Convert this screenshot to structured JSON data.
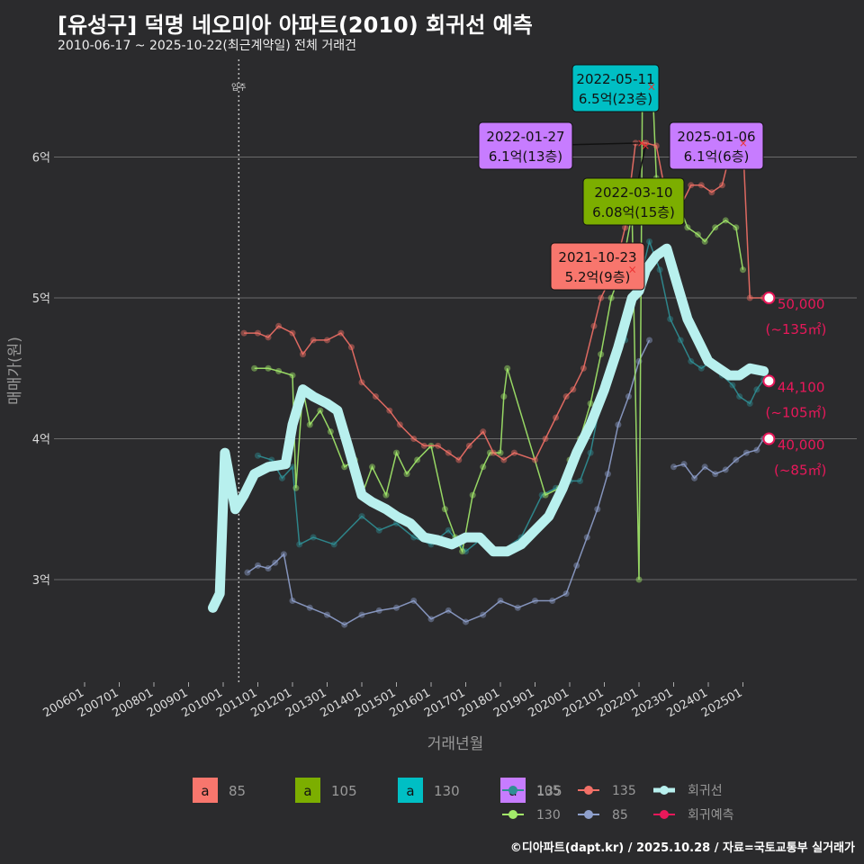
{
  "title": "[유성구] 덕명 네오미아 아파트(2010) 회귀선 예측",
  "subtitle": "2010-06-17 ~ 2025-10-22(최근계약일) 전체 거래건",
  "footer": "©디아파트(dapt.kr) / 2025.10.28 / 자료=국토교통부 실거래가",
  "colors": {
    "s85": "#8fa0cc",
    "s105": "#2f8f95",
    "s130": "#a3ea6a",
    "s135": "#f27067",
    "reg": "#b8f0ee",
    "pred": "#e8185a"
  },
  "chart_data": {
    "type": "line",
    "xlabel": "거래년월",
    "ylabel": "매매가(원)",
    "ylim": [
      2.35,
      6.95
    ],
    "x_ticks": [
      "200601",
      "200701",
      "200801",
      "200901",
      "201001",
      "201101",
      "201201",
      "201301",
      "201401",
      "201501",
      "201601",
      "201701",
      "201801",
      "201901",
      "202001",
      "202101",
      "202201",
      "202301",
      "202401",
      "202501"
    ],
    "y_ticks": [
      {
        "v": 3,
        "label": "3억"
      },
      {
        "v": 4,
        "label": "4억"
      },
      {
        "v": 5,
        "label": "5억"
      },
      {
        "v": 6,
        "label": "6억"
      }
    ],
    "move_in": {
      "x": 2010.45,
      "label": "입주"
    },
    "series": [
      {
        "name": "85",
        "key": "s85",
        "points": [
          [
            2010.7,
            3.05
          ],
          [
            2011.0,
            3.1
          ],
          [
            2011.3,
            3.08
          ],
          [
            2011.5,
            3.12
          ],
          [
            2011.75,
            3.18
          ],
          [
            2012.0,
            2.85
          ],
          [
            2012.5,
            2.8
          ],
          [
            2013.0,
            2.75
          ],
          [
            2013.5,
            2.68
          ],
          [
            2014.0,
            2.75
          ],
          [
            2014.5,
            2.78
          ],
          [
            2015.0,
            2.8
          ],
          [
            2015.5,
            2.85
          ],
          [
            2016.0,
            2.72
          ],
          [
            2016.5,
            2.78
          ],
          [
            2017.0,
            2.7
          ],
          [
            2017.5,
            2.75
          ],
          [
            2018.0,
            2.85
          ],
          [
            2018.5,
            2.8
          ],
          [
            2019.0,
            2.85
          ],
          [
            2019.5,
            2.85
          ],
          [
            2019.9,
            2.9
          ],
          [
            2020.2,
            3.1
          ],
          [
            2020.5,
            3.3
          ],
          [
            2020.8,
            3.5
          ],
          [
            2021.1,
            3.75
          ],
          [
            2021.4,
            4.1
          ],
          [
            2021.7,
            4.3
          ],
          [
            2022.0,
            4.55
          ],
          [
            2022.3,
            4.7
          ]
        ]
      },
      {
        "name": "85b",
        "key": "s85",
        "points": [
          [
            2023.0,
            3.8
          ],
          [
            2023.3,
            3.82
          ],
          [
            2023.6,
            3.72
          ],
          [
            2023.9,
            3.8
          ],
          [
            2024.2,
            3.75
          ],
          [
            2024.5,
            3.78
          ],
          [
            2024.8,
            3.85
          ],
          [
            2025.1,
            3.9
          ],
          [
            2025.4,
            3.92
          ],
          [
            2025.6,
            4.0
          ]
        ]
      },
      {
        "name": "105",
        "key": "s105",
        "points": [
          [
            2011.0,
            3.88
          ],
          [
            2011.4,
            3.85
          ],
          [
            2011.7,
            3.72
          ],
          [
            2012.0,
            3.8
          ],
          [
            2012.2,
            3.25
          ],
          [
            2012.6,
            3.3
          ],
          [
            2013.2,
            3.25
          ],
          [
            2014.0,
            3.45
          ],
          [
            2014.5,
            3.35
          ],
          [
            2015.0,
            3.4
          ],
          [
            2015.5,
            3.3
          ],
          [
            2016.0,
            3.25
          ],
          [
            2016.5,
            3.35
          ],
          [
            2017.0,
            3.2
          ],
          [
            2017.5,
            3.3
          ],
          [
            2018.0,
            3.2
          ],
          [
            2018.6,
            3.3
          ],
          [
            2019.2,
            3.6
          ],
          [
            2019.6,
            3.65
          ],
          [
            2020.0,
            3.7
          ],
          [
            2020.3,
            3.7
          ],
          [
            2020.6,
            3.9
          ],
          [
            2021.0,
            4.4
          ],
          [
            2021.3,
            4.6
          ],
          [
            2021.6,
            4.7
          ],
          [
            2021.9,
            5.0
          ],
          [
            2022.3,
            5.4
          ],
          [
            2022.6,
            5.2
          ],
          [
            2022.9,
            4.85
          ],
          [
            2023.2,
            4.7
          ],
          [
            2023.5,
            4.55
          ],
          [
            2023.8,
            4.5
          ],
          [
            2024.1,
            4.55
          ],
          [
            2024.4,
            4.45
          ],
          [
            2024.7,
            4.38
          ],
          [
            2024.9,
            4.3
          ],
          [
            2025.2,
            4.25
          ],
          [
            2025.4,
            4.35
          ],
          [
            2025.6,
            4.42
          ]
        ]
      },
      {
        "name": "130",
        "key": "s130",
        "points": [
          [
            2010.9,
            4.5
          ],
          [
            2011.3,
            4.5
          ],
          [
            2011.6,
            4.48
          ],
          [
            2012.0,
            4.45
          ],
          [
            2012.1,
            3.65
          ],
          [
            2012.3,
            4.35
          ],
          [
            2012.5,
            4.1
          ],
          [
            2012.8,
            4.2
          ],
          [
            2013.1,
            4.05
          ],
          [
            2013.5,
            3.8
          ],
          [
            2013.8,
            3.85
          ],
          [
            2014.0,
            3.6
          ],
          [
            2014.3,
            3.8
          ],
          [
            2014.7,
            3.6
          ],
          [
            2015.0,
            3.9
          ],
          [
            2015.3,
            3.75
          ],
          [
            2015.6,
            3.85
          ],
          [
            2016.0,
            3.95
          ],
          [
            2016.4,
            3.5
          ],
          [
            2016.7,
            3.3
          ],
          [
            2016.9,
            3.2
          ],
          [
            2017.2,
            3.6
          ],
          [
            2017.5,
            3.8
          ],
          [
            2017.7,
            3.9
          ],
          [
            2018.0,
            3.9
          ],
          [
            2018.1,
            4.3
          ],
          [
            2018.2,
            4.5
          ],
          [
            2019.3,
            3.6
          ],
          [
            2019.7,
            3.65
          ],
          [
            2020.0,
            3.85
          ],
          [
            2020.3,
            4.0
          ],
          [
            2020.6,
            4.25
          ],
          [
            2020.9,
            4.6
          ],
          [
            2021.2,
            5.0
          ],
          [
            2021.5,
            5.2
          ],
          [
            2021.8,
            5.6
          ],
          [
            2022.0,
            3.0
          ],
          [
            2022.1,
            6.5
          ],
          [
            2022.4,
            6.45
          ],
          [
            2022.5,
            5.85
          ],
          [
            2022.8,
            5.75
          ],
          [
            2023.1,
            5.7
          ],
          [
            2023.4,
            5.5
          ],
          [
            2023.7,
            5.45
          ],
          [
            2023.9,
            5.4
          ],
          [
            2024.2,
            5.5
          ],
          [
            2024.5,
            5.55
          ],
          [
            2024.8,
            5.5
          ],
          [
            2025.0,
            5.2
          ]
        ]
      },
      {
        "name": "135",
        "key": "s135",
        "points": [
          [
            2010.6,
            4.75
          ],
          [
            2011.0,
            4.75
          ],
          [
            2011.3,
            4.72
          ],
          [
            2011.6,
            4.8
          ],
          [
            2012.0,
            4.75
          ],
          [
            2012.3,
            4.6
          ],
          [
            2012.6,
            4.7
          ],
          [
            2013.0,
            4.7
          ],
          [
            2013.4,
            4.75
          ],
          [
            2013.7,
            4.65
          ],
          [
            2014.0,
            4.4
          ],
          [
            2014.4,
            4.3
          ],
          [
            2014.8,
            4.2
          ],
          [
            2015.1,
            4.1
          ],
          [
            2015.5,
            4.0
          ],
          [
            2015.8,
            3.95
          ],
          [
            2016.2,
            3.95
          ],
          [
            2016.5,
            3.9
          ],
          [
            2016.8,
            3.85
          ],
          [
            2017.1,
            3.95
          ],
          [
            2017.5,
            4.05
          ],
          [
            2017.8,
            3.9
          ],
          [
            2018.1,
            3.85
          ],
          [
            2018.4,
            3.9
          ],
          [
            2019.0,
            3.85
          ],
          [
            2019.3,
            4.0
          ],
          [
            2019.6,
            4.15
          ],
          [
            2019.9,
            4.3
          ],
          [
            2020.1,
            4.35
          ],
          [
            2020.4,
            4.5
          ],
          [
            2020.7,
            4.8
          ],
          [
            2020.9,
            5.0
          ],
          [
            2021.3,
            5.2
          ],
          [
            2021.6,
            5.5
          ],
          [
            2021.9,
            6.1
          ],
          [
            2022.2,
            6.1
          ],
          [
            2022.5,
            6.08
          ],
          [
            2022.8,
            5.7
          ],
          [
            2023.1,
            5.6
          ],
          [
            2023.5,
            5.8
          ],
          [
            2023.8,
            5.8
          ],
          [
            2024.1,
            5.75
          ],
          [
            2024.4,
            5.8
          ],
          [
            2024.7,
            6.1
          ],
          [
            2025.0,
            6.1
          ],
          [
            2025.2,
            5.0
          ],
          [
            2025.6,
            5.0
          ]
        ]
      },
      {
        "name": "회귀선",
        "key": "reg",
        "points": [
          [
            2009.7,
            2.8
          ],
          [
            2009.9,
            2.9
          ],
          [
            2010.05,
            3.9
          ],
          [
            2010.2,
            3.7
          ],
          [
            2010.35,
            3.5
          ],
          [
            2010.6,
            3.6
          ],
          [
            2010.9,
            3.75
          ],
          [
            2011.3,
            3.8
          ],
          [
            2011.8,
            3.82
          ],
          [
            2012.0,
            4.1
          ],
          [
            2012.3,
            4.35
          ],
          [
            2012.6,
            4.3
          ],
          [
            2013.0,
            4.25
          ],
          [
            2013.3,
            4.2
          ],
          [
            2013.6,
            3.95
          ],
          [
            2014.0,
            3.6
          ],
          [
            2014.3,
            3.55
          ],
          [
            2014.7,
            3.5
          ],
          [
            2015.0,
            3.45
          ],
          [
            2015.4,
            3.4
          ],
          [
            2015.8,
            3.3
          ],
          [
            2016.2,
            3.28
          ],
          [
            2016.6,
            3.25
          ],
          [
            2017.0,
            3.3
          ],
          [
            2017.4,
            3.3
          ],
          [
            2017.8,
            3.2
          ],
          [
            2018.2,
            3.2
          ],
          [
            2018.6,
            3.25
          ],
          [
            2019.0,
            3.35
          ],
          [
            2019.4,
            3.45
          ],
          [
            2019.8,
            3.65
          ],
          [
            2020.2,
            3.9
          ],
          [
            2020.6,
            4.1
          ],
          [
            2021.0,
            4.35
          ],
          [
            2021.4,
            4.65
          ],
          [
            2021.8,
            5.0
          ],
          [
            2022.0,
            5.05
          ],
          [
            2022.2,
            5.2
          ],
          [
            2022.5,
            5.3
          ],
          [
            2022.8,
            5.35
          ],
          [
            2023.1,
            5.1
          ],
          [
            2023.4,
            4.85
          ],
          [
            2023.7,
            4.7
          ],
          [
            2024.0,
            4.55
          ],
          [
            2024.3,
            4.5
          ],
          [
            2024.6,
            4.45
          ],
          [
            2024.9,
            4.45
          ],
          [
            2025.2,
            4.5
          ],
          [
            2025.6,
            4.48
          ]
        ]
      }
    ],
    "annotations": [
      {
        "date": "2022-05-11",
        "text": "6.5억(23층)",
        "fill": "#00bfc4",
        "x": 2022.36,
        "y": 6.5
      },
      {
        "date": "2022-01-27",
        "text": "6.1억(13층)",
        "fill": "#c77cff",
        "x": 2022.07,
        "y": 6.1
      },
      {
        "date": "2025-01-06",
        "text": "6.1억(6층)",
        "fill": "#c77cff",
        "x": 2025.01,
        "y": 6.1
      },
      {
        "date": "2022-03-10",
        "text": "6.08억(15층)",
        "fill": "#7cae00",
        "x": 2022.19,
        "y": 6.08
      },
      {
        "date": "2021-10-23",
        "text": "5.2억(9층)",
        "fill": "#f8766d",
        "x": 2021.81,
        "y": 5.2
      }
    ],
    "predictions": [
      {
        "value": "50,000",
        "area": "(~135㎡)",
        "x": 2025.75,
        "y": 5.0
      },
      {
        "value": "44,100",
        "area": "(~105㎡)",
        "x": 2025.75,
        "y": 4.41
      },
      {
        "value": "40,000",
        "area": "(~85㎡)",
        "x": 2025.75,
        "y": 4.0
      }
    ]
  },
  "legend": {
    "fill_items": [
      {
        "label": "85",
        "color": "#f8766d"
      },
      {
        "label": "105",
        "color": "#7cae00"
      },
      {
        "label": "130",
        "color": "#00bfc4"
      },
      {
        "label": "135",
        "color": "#c77cff"
      }
    ],
    "line_items": [
      {
        "label": "105",
        "key": "s105"
      },
      {
        "label": "135",
        "key": "s135"
      },
      {
        "label": "회귀선",
        "key": "reg"
      },
      {
        "label": "130",
        "key": "s130"
      },
      {
        "label": "85",
        "key": "s85"
      },
      {
        "label": "회귀예측",
        "key": "pred"
      }
    ]
  }
}
